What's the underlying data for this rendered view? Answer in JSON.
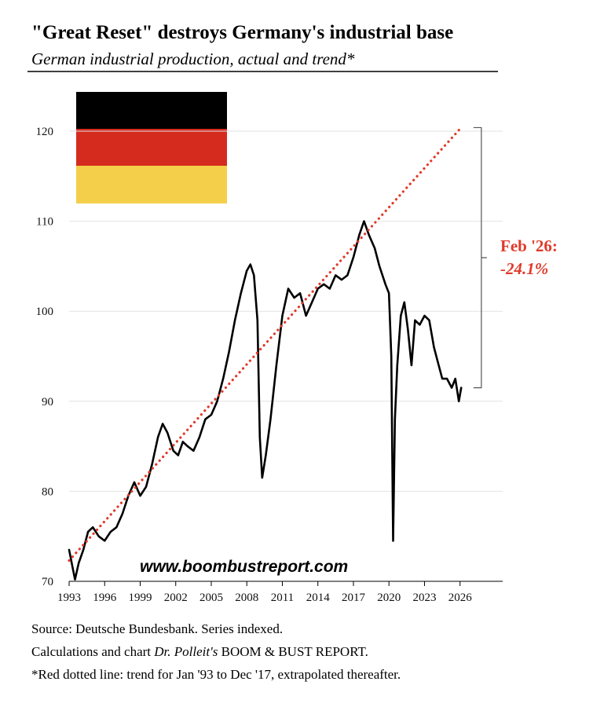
{
  "chart_data": {
    "type": "line",
    "title": "\"Great Reset\" destroys Germany's industrial base",
    "subtitle": "German industrial production, actual and trend*",
    "watermark": "www.boombustreport.com",
    "xlim": [
      1993,
      2029.6
    ],
    "ylim": [
      70,
      125
    ],
    "xticks": [
      1993,
      1996,
      1999,
      2002,
      2005,
      2008,
      2011,
      2014,
      2017,
      2020,
      2023,
      2026
    ],
    "yticks": [
      70,
      80,
      90,
      100,
      110,
      120
    ],
    "grid": true,
    "series": [
      {
        "color": "#000000",
        "x": [
          1993.0,
          1993.3,
          1993.5,
          1993.8,
          1994.2,
          1994.6,
          1995.0,
          1995.5,
          1996.0,
          1996.5,
          1997.0,
          1997.5,
          1998.0,
          1998.5,
          1999.0,
          1999.5,
          2000.0,
          2000.5,
          2000.9,
          2001.3,
          2001.8,
          2002.2,
          2002.6,
          2003.0,
          2003.5,
          2004.0,
          2004.5,
          2005.0,
          2005.5,
          2006.0,
          2006.5,
          2007.0,
          2007.5,
          2008.0,
          2008.3,
          2008.6,
          2008.9,
          2009.1,
          2009.3,
          2009.6,
          2010.0,
          2010.5,
          2011.0,
          2011.5,
          2012.0,
          2012.5,
          2013.0,
          2013.5,
          2014.0,
          2014.5,
          2015.0,
          2015.5,
          2016.0,
          2016.5,
          2017.0,
          2017.5,
          2017.9,
          2018.3,
          2018.8,
          2019.2,
          2019.7,
          2020.0,
          2020.2,
          2020.35,
          2020.5,
          2020.7,
          2021.0,
          2021.3,
          2021.6,
          2021.9,
          2022.2,
          2022.6,
          2023.0,
          2023.4,
          2023.8,
          2024.1,
          2024.5,
          2024.9,
          2025.3,
          2025.6,
          2025.9,
          2026.1
        ],
        "values": [
          73.5,
          71.5,
          70.2,
          72,
          73.5,
          75.5,
          76,
          75,
          74.5,
          75.5,
          76,
          77.5,
          79.5,
          81,
          79.5,
          80.5,
          83,
          86,
          87.5,
          86.5,
          84.5,
          84,
          85.5,
          85,
          84.5,
          86,
          88,
          88.5,
          90,
          92.5,
          95.5,
          99,
          102,
          104.5,
          105.2,
          104,
          99,
          86,
          81.5,
          84,
          88,
          94,
          99.5,
          102.5,
          101.5,
          102,
          99.5,
          101,
          102.5,
          103,
          102.5,
          104,
          103.5,
          104,
          106,
          108.5,
          110,
          108.5,
          107,
          105,
          103,
          102,
          95,
          74.5,
          88,
          94,
          99.5,
          101,
          98,
          94,
          99,
          98.5,
          99.5,
          99,
          96,
          94.5,
          92.5,
          92.5,
          91.5,
          92.5,
          90,
          91.5
        ]
      },
      {
        "color": "#e03a2a",
        "style": "dotted",
        "x": [
          1993,
          2026.1
        ],
        "values": [
          72.3,
          120.4
        ]
      }
    ],
    "annotation": {
      "lines": [
        "Feb '26:",
        "-24.1%"
      ],
      "color": "#e03a2a",
      "x": 2027.8,
      "range": [
        91.5,
        120.4
      ]
    },
    "notes": [
      [
        "Source: Deutsche Bundesbank. Series indexed."
      ],
      [
        "Calculations and chart ",
        "Dr. Polleit's",
        " BOOM & BUST REPORT."
      ],
      [
        "*Red dotted line: trend for Jan '93 to Dec '17, extrapolated thereafter."
      ]
    ]
  }
}
